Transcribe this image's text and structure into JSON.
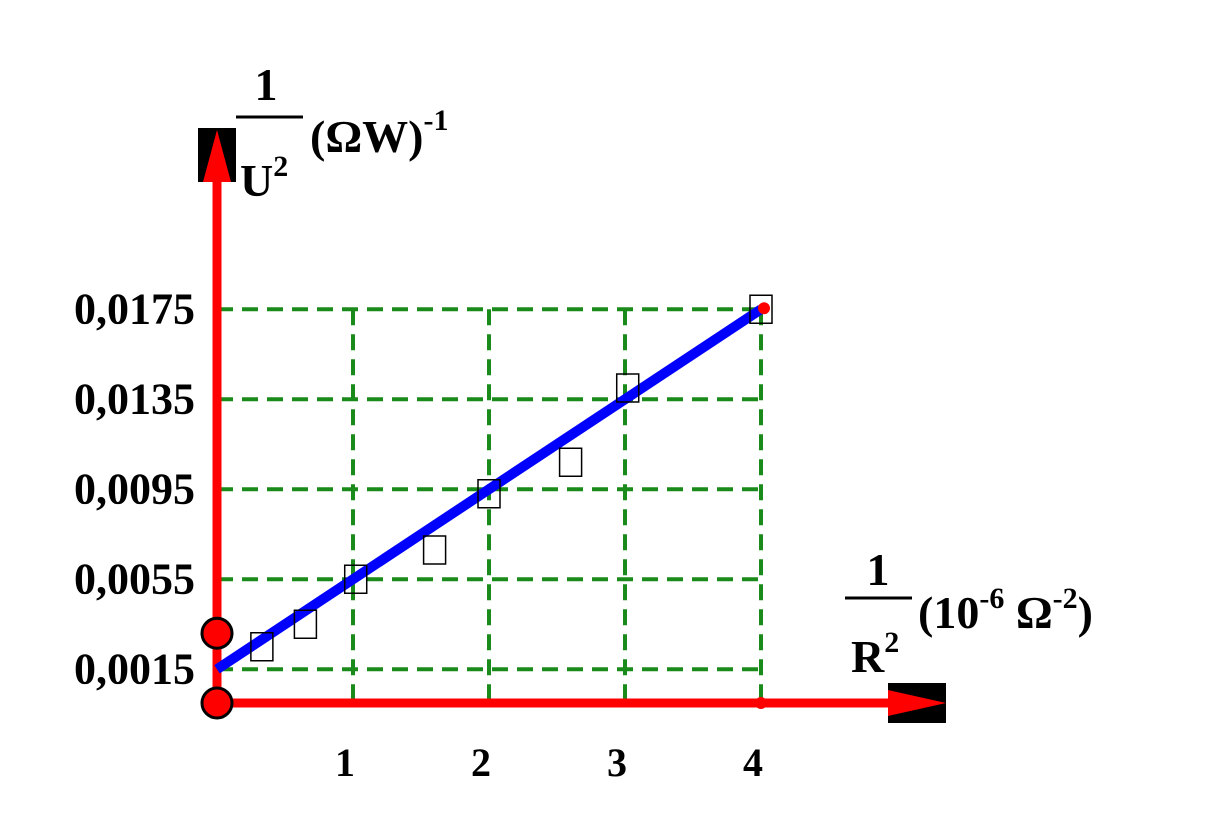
{
  "chart_data": {
    "type": "scatter",
    "title": "",
    "y_axis": {
      "numerator": "1",
      "denominator": "U",
      "denominator_exp": "2",
      "unit": "(ΩW)",
      "unit_exp": "-1",
      "ticks": [
        "0,0015",
        "0,0055",
        "0,0095",
        "0,0135",
        "0,0175"
      ],
      "tick_values": [
        0.0015,
        0.0055,
        0.0095,
        0.0135,
        0.0175
      ]
    },
    "x_axis": {
      "numerator": "1",
      "denominator": "R",
      "denominator_exp": "2",
      "unit_open": "(10",
      "unit_exp": "-6",
      "unit_mid": " Ω",
      "unit_exp2": "-2",
      "unit_close": ")",
      "ticks": [
        "1",
        "2",
        "3",
        "4"
      ],
      "tick_values": [
        1,
        2,
        3,
        4
      ]
    },
    "xlim": [
      0,
      5.5
    ],
    "ylim": [
      0,
      0.0235
    ],
    "grid": true,
    "points": [
      {
        "x": 0.33,
        "y": 0.0025
      },
      {
        "x": 0.65,
        "y": 0.0035
      },
      {
        "x": 1.02,
        "y": 0.0055
      },
      {
        "x": 1.6,
        "y": 0.0068
      },
      {
        "x": 2.0,
        "y": 0.0093
      },
      {
        "x": 2.6,
        "y": 0.0107
      },
      {
        "x": 3.02,
        "y": 0.014
      },
      {
        "x": 4.0,
        "y": 0.0175
      }
    ],
    "fit_line": {
      "x": [
        0,
        4.0
      ],
      "y": [
        0.0015,
        0.0175
      ]
    },
    "axis_markers": [
      {
        "x": 0,
        "y": 0
      },
      {
        "x": 0,
        "y": 0.0031
      }
    ],
    "colors": {
      "axis": "#ff0000",
      "grid": "#1a8a1a",
      "fit_line": "#0000ff",
      "marker_edge": "#000000"
    }
  }
}
